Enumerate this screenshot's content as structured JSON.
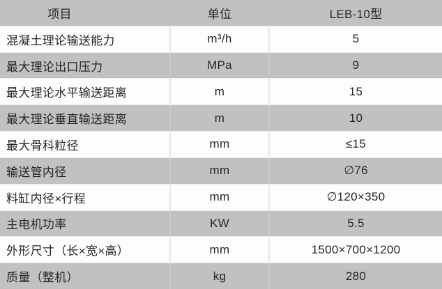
{
  "table": {
    "columns": [
      {
        "label": "项目"
      },
      {
        "label": "单位"
      },
      {
        "label": "LEB-10型"
      }
    ],
    "rows": [
      {
        "item": "混凝土理论输送能力",
        "unit": "m³/h",
        "value": "5"
      },
      {
        "item": "最大理论出口压力",
        "unit": "MPa",
        "value": "9"
      },
      {
        "item": "最大理论水平输送距离",
        "unit": "m",
        "value": "15"
      },
      {
        "item": "最大理论垂直输送距离",
        "unit": "m",
        "value": "10"
      },
      {
        "item": "最大骨科粒径",
        "unit": "mm",
        "value": "≤15"
      },
      {
        "item": "输送管内径",
        "unit": "mm",
        "value": "∅76"
      },
      {
        "item": "料缸内径×行程",
        "unit": "mm",
        "value": "∅120×350"
      },
      {
        "item": "主电机功率",
        "unit": "KW",
        "value": "5.5"
      },
      {
        "item": "外形尺寸（长×宽×高）",
        "unit": "mm",
        "value": "1500×700×1200"
      },
      {
        "item": "质量（整机）",
        "unit": "kg",
        "value": "280"
      }
    ],
    "colors": {
      "header_bg": "#c1c1c1",
      "stripe_bg": "#c1c1c1",
      "row_bg": "#fdfdfd",
      "text": "#262626",
      "divider_light": "#e7e7e7",
      "divider_on_gray": "#cbcbcb"
    }
  },
  "chart_data": {
    "type": "table",
    "columns": [
      "项目",
      "单位",
      "LEB-10型"
    ],
    "rows": [
      [
        "混凝土理论输送能力",
        "m³/h",
        "5"
      ],
      [
        "最大理论出口压力",
        "MPa",
        "9"
      ],
      [
        "最大理论水平输送距离",
        "m",
        "15"
      ],
      [
        "最大理论垂直输送距离",
        "m",
        "10"
      ],
      [
        "最大骨科粒径",
        "mm",
        "≤15"
      ],
      [
        "输送管内径",
        "mm",
        "∅76"
      ],
      [
        "料缸内径×行程",
        "mm",
        "∅120×350"
      ],
      [
        "主电机功率",
        "KW",
        "5.5"
      ],
      [
        "外形尺寸（长×宽×高）",
        "mm",
        "1500×700×1200"
      ],
      [
        "质量（整机）",
        "kg",
        "280"
      ]
    ]
  }
}
